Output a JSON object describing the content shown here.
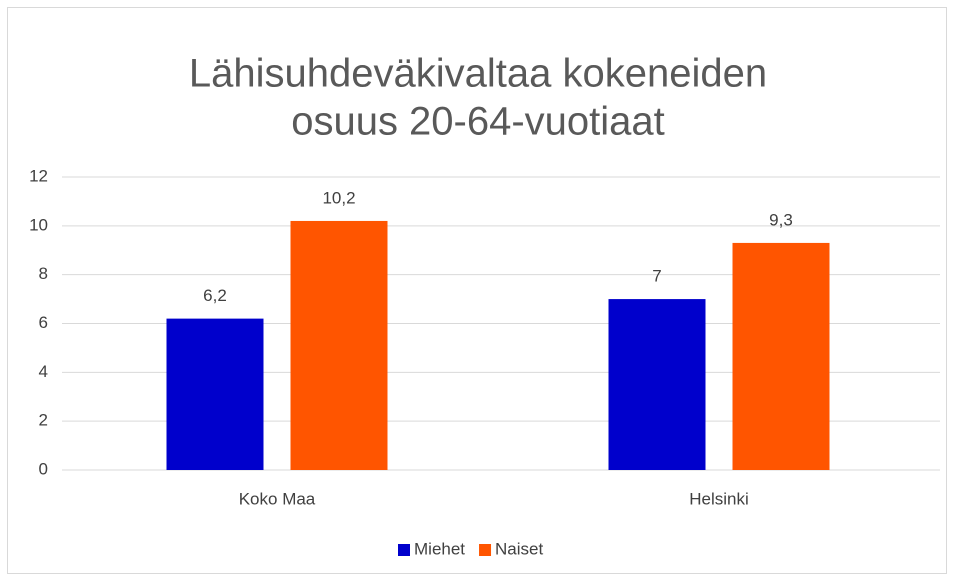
{
  "chart_data": {
    "type": "bar",
    "title": [
      "Lähisuhdeväkivaltaa kokeneiden",
      "osuus 20-64-vuotiaat"
    ],
    "categories": [
      "Koko Maa",
      "Helsinki"
    ],
    "series": [
      {
        "name": "Miehet",
        "color": "#0000cc",
        "values": [
          6.2,
          7
        ],
        "value_labels": [
          "6,2",
          "7"
        ]
      },
      {
        "name": "Naiset",
        "color": "#ff5500",
        "values": [
          10.2,
          9.3
        ],
        "value_labels": [
          "10,2",
          "9,3"
        ]
      }
    ],
    "ylim": [
      0,
      12
    ],
    "yticks": [
      0,
      2,
      4,
      6,
      8,
      10,
      12
    ],
    "grid": true,
    "legend": "bottom"
  }
}
